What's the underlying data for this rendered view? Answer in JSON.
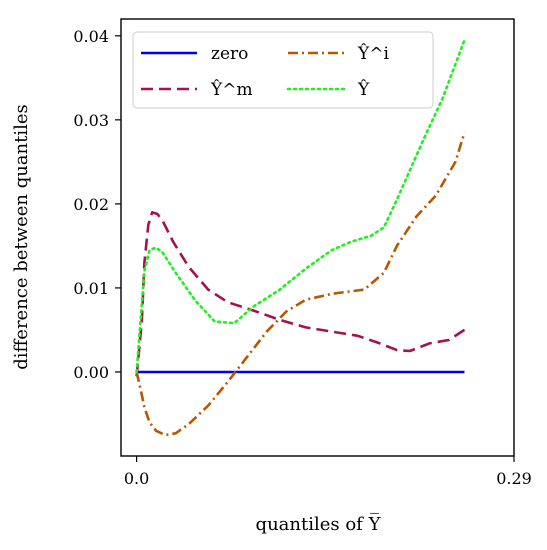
{
  "chart_data": {
    "type": "line",
    "xlabel": "quantiles of Y̅",
    "ylabel": "difference between quantiles",
    "xlim": [
      -0.012,
      0.29
    ],
    "ylim": [
      -0.01,
      0.042
    ],
    "x_ticks": [
      {
        "value": 0.0,
        "label": "0.0"
      },
      {
        "value": 0.29,
        "label": "0.29"
      }
    ],
    "y_ticks": [
      {
        "value": 0.0,
        "label": "0.00"
      },
      {
        "value": 0.01,
        "label": "0.01"
      },
      {
        "value": 0.02,
        "label": "0.02"
      },
      {
        "value": 0.03,
        "label": "0.03"
      },
      {
        "value": 0.04,
        "label": "0.04"
      }
    ],
    "grid": false,
    "legend_position": "top",
    "series": [
      {
        "name": "zero",
        "color": "#0000ee",
        "dash": "solid",
        "x": [
          0.0,
          0.252
        ],
        "y": [
          0.0,
          0.0
        ]
      },
      {
        "name": "Ŷ^m",
        "color": "#a5124f",
        "dash": "dashed",
        "x": [
          0.0,
          0.004,
          0.006,
          0.009,
          0.012,
          0.016,
          0.02,
          0.028,
          0.04,
          0.055,
          0.07,
          0.09,
          0.11,
          0.13,
          0.15,
          0.17,
          0.185,
          0.2,
          0.21,
          0.225,
          0.24,
          0.252
        ],
        "y": [
          -0.0005,
          0.006,
          0.013,
          0.0175,
          0.019,
          0.0188,
          0.018,
          0.0155,
          0.0125,
          0.0098,
          0.0083,
          0.0073,
          0.0062,
          0.0053,
          0.0048,
          0.0043,
          0.0035,
          0.0026,
          0.0025,
          0.0034,
          0.0038,
          0.005
        ]
      },
      {
        "name": "Ŷ^i",
        "color": "#b65800",
        "dash": "dashdot",
        "x": [
          0.0,
          0.003,
          0.006,
          0.01,
          0.015,
          0.022,
          0.03,
          0.04,
          0.055,
          0.07,
          0.085,
          0.1,
          0.115,
          0.13,
          0.15,
          0.175,
          0.19,
          0.2,
          0.215,
          0.23,
          0.245,
          0.252
        ],
        "y": [
          0.0,
          -0.002,
          -0.0042,
          -0.006,
          -0.007,
          -0.0075,
          -0.0073,
          -0.0062,
          -0.004,
          -0.0012,
          0.0018,
          0.0048,
          0.0072,
          0.0086,
          0.0093,
          0.0098,
          0.0118,
          0.015,
          0.0185,
          0.021,
          0.025,
          0.0285
        ]
      },
      {
        "name": "Ŷ",
        "color": "#22ee22",
        "dash": "dotted",
        "x": [
          0.0,
          0.003,
          0.006,
          0.01,
          0.015,
          0.02,
          0.03,
          0.045,
          0.06,
          0.075,
          0.09,
          0.11,
          0.13,
          0.15,
          0.165,
          0.18,
          0.19,
          0.2,
          0.21,
          0.22,
          0.235,
          0.252
        ],
        "y": [
          0.0,
          0.006,
          0.012,
          0.0145,
          0.0148,
          0.0142,
          0.0118,
          0.0085,
          0.006,
          0.0058,
          0.0078,
          0.0098,
          0.0123,
          0.0145,
          0.0155,
          0.0162,
          0.0172,
          0.0205,
          0.024,
          0.0275,
          0.0325,
          0.0395
        ]
      }
    ]
  }
}
